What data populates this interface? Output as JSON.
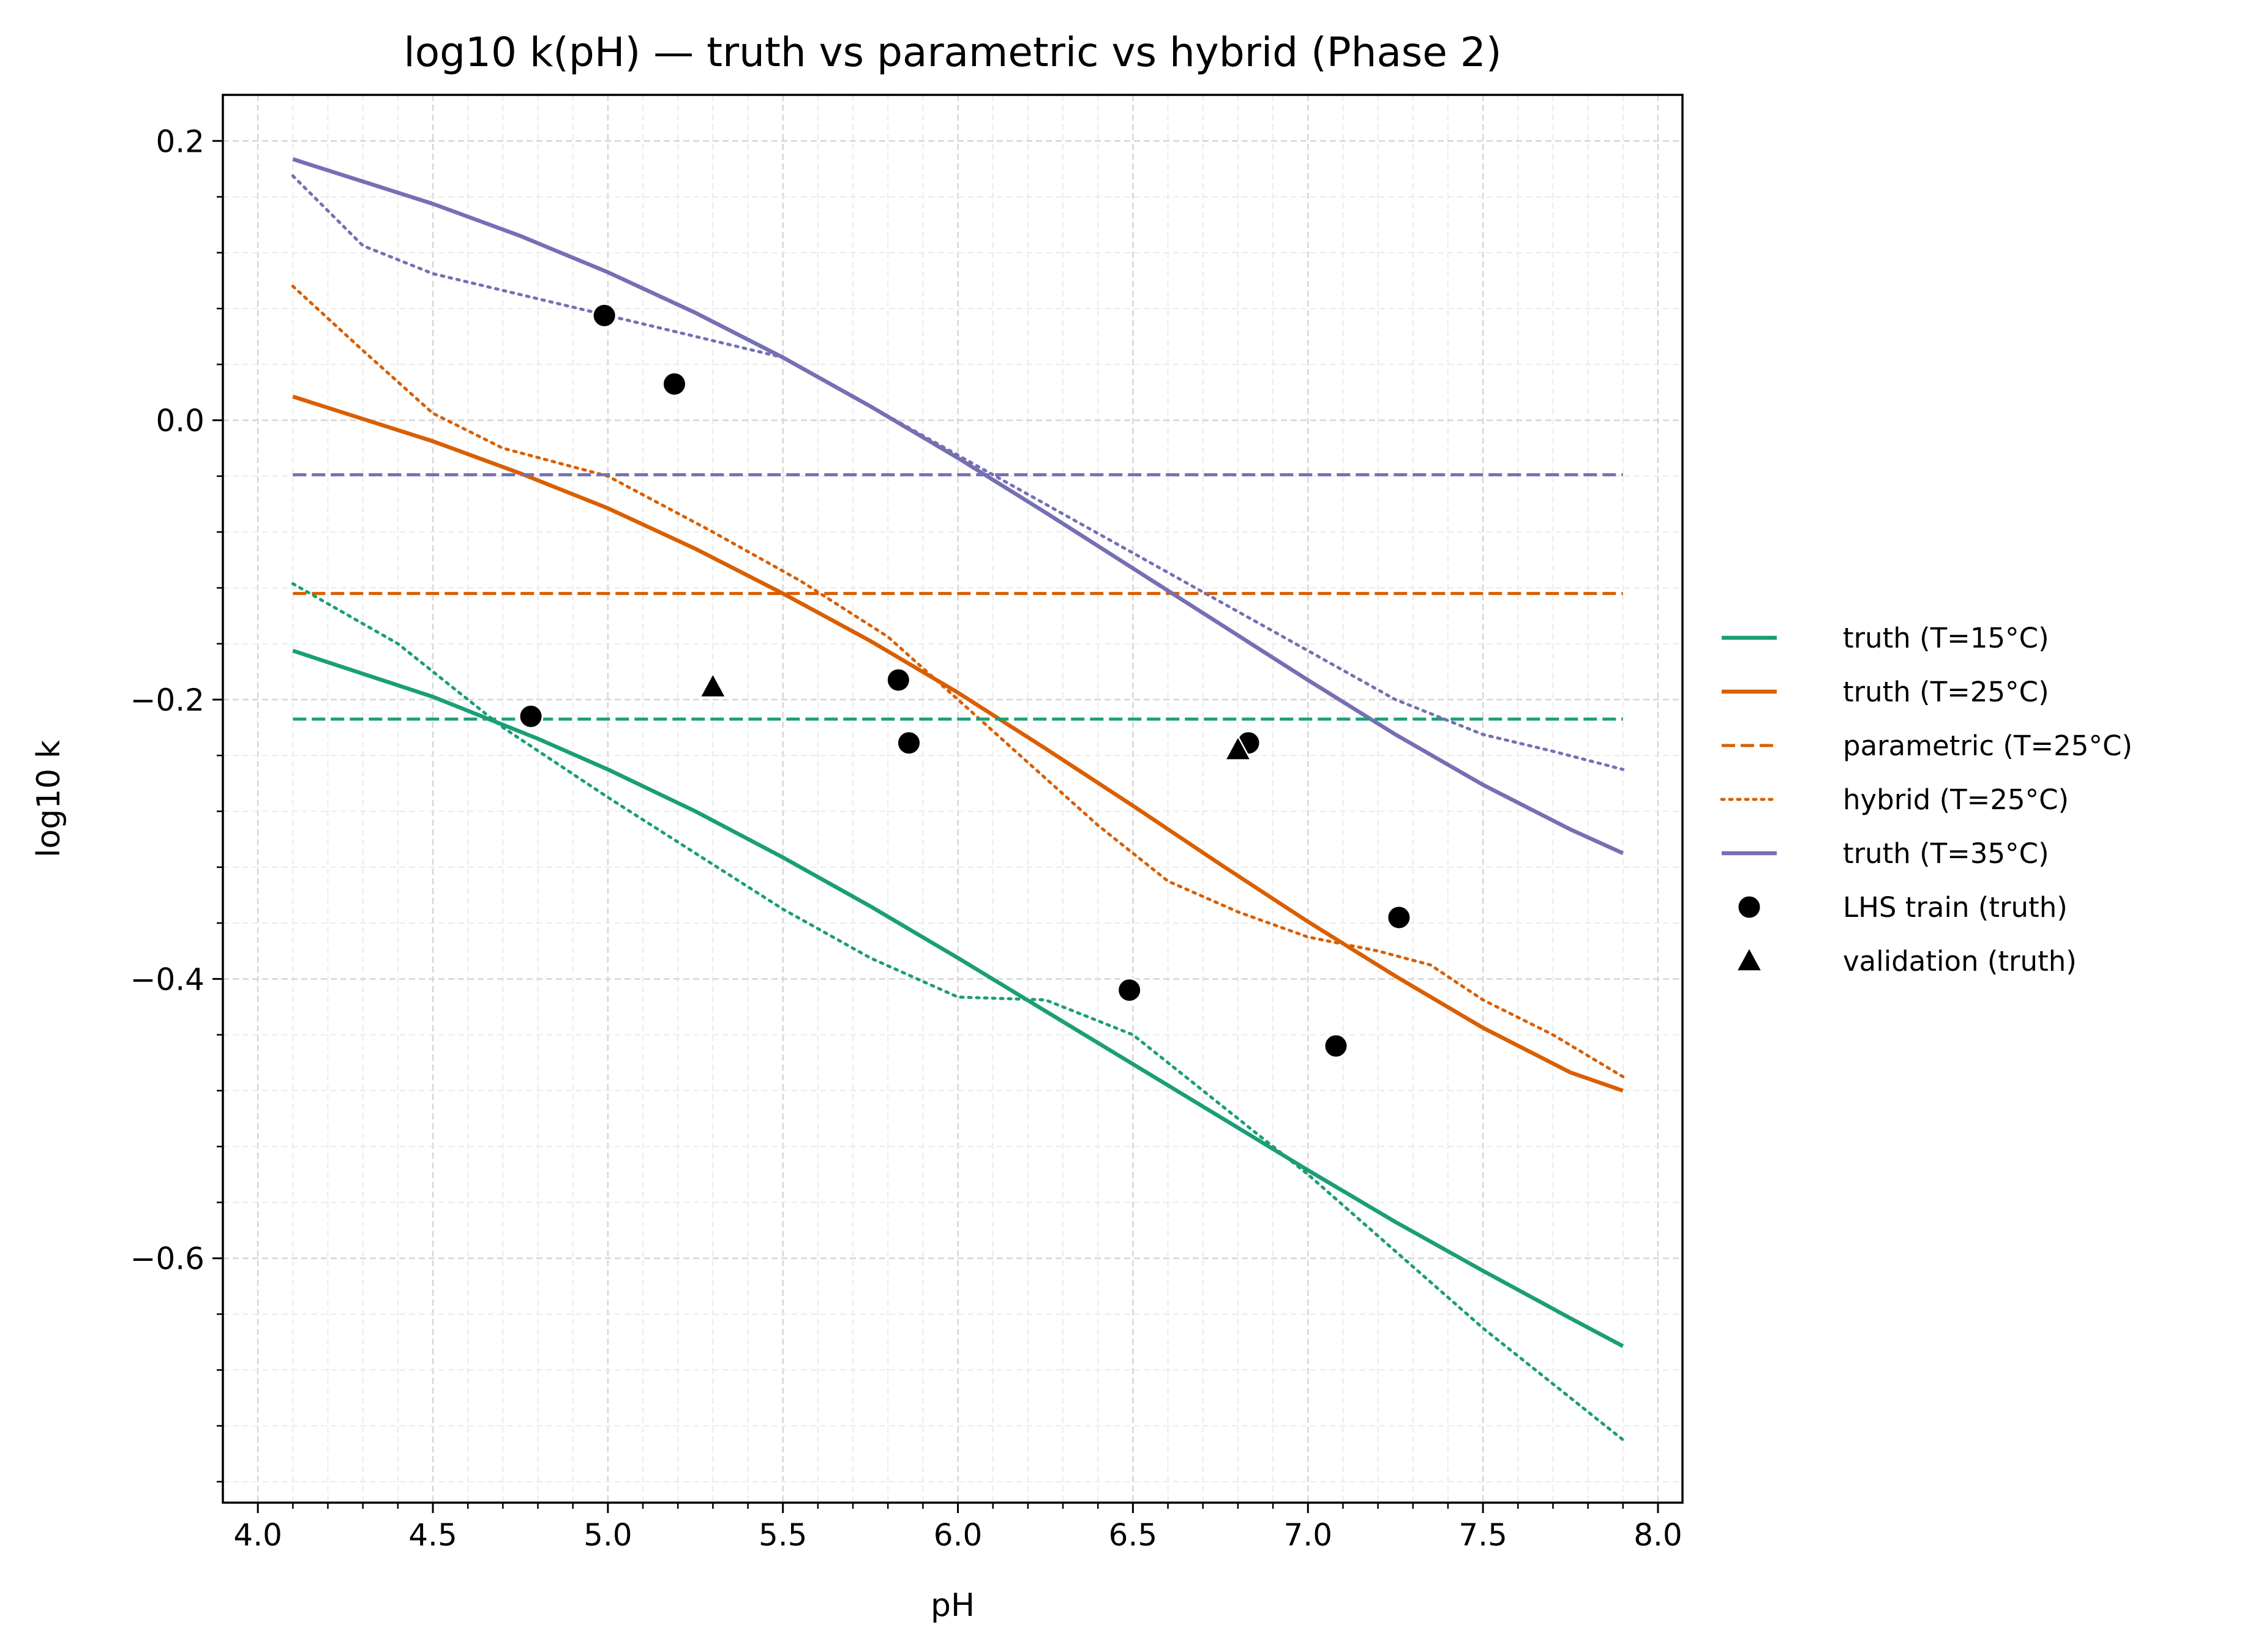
{
  "chart_data": {
    "type": "line",
    "title": "log10 k(pH) — truth vs parametric vs hybrid (Phase 2)",
    "xlabel": "pH",
    "ylabel": "log10 k",
    "xlim": [
      3.9,
      8.07
    ],
    "ylim": [
      -0.775,
      0.233
    ],
    "x_ticks": [
      4.0,
      4.5,
      5.0,
      5.5,
      6.0,
      6.5,
      7.0,
      7.5,
      8.0
    ],
    "x_tick_labels": [
      "4.0",
      "4.5",
      "5.0",
      "5.5",
      "6.0",
      "6.5",
      "7.0",
      "7.5",
      "8.0"
    ],
    "y_ticks": [
      0.2,
      0.0,
      -0.2,
      -0.4,
      -0.6
    ],
    "y_tick_labels": [
      "0.2",
      "0.0",
      "−0.2",
      "−0.4",
      "−0.6"
    ],
    "grid": "on (major and minor, dashed)",
    "legend_position": "outside-right",
    "colors": {
      "t15": "#1b9e77",
      "t25": "#d95f02",
      "t35": "#7570b3",
      "markers": "#000000"
    },
    "series": [
      {
        "name": "truth (T=15°C)",
        "style": "solid",
        "color": "#1b9e77",
        "x": [
          4.1,
          4.5,
          4.8,
          5.0,
          5.25,
          5.5,
          5.75,
          6.0,
          6.25,
          6.5,
          6.75,
          7.0,
          7.25,
          7.5,
          7.75,
          7.9
        ],
        "y": [
          -0.165,
          -0.198,
          -0.228,
          -0.25,
          -0.28,
          -0.313,
          -0.348,
          -0.385,
          -0.423,
          -0.461,
          -0.499,
          -0.537,
          -0.574,
          -0.609,
          -0.643,
          -0.663
        ]
      },
      {
        "name": "truth (T=25°C)",
        "style": "solid",
        "color": "#d95f02",
        "x": [
          4.1,
          4.5,
          4.75,
          5.0,
          5.25,
          5.5,
          5.75,
          6.0,
          6.25,
          6.5,
          6.75,
          7.0,
          7.25,
          7.5,
          7.75,
          7.9
        ],
        "y": [
          0.017,
          -0.015,
          -0.038,
          -0.063,
          -0.092,
          -0.124,
          -0.158,
          -0.195,
          -0.235,
          -0.276,
          -0.318,
          -0.359,
          -0.398,
          -0.435,
          -0.467,
          -0.48
        ]
      },
      {
        "name": "parametric (T=25°C)",
        "style": "dashed",
        "color": "#d95f02",
        "x": [
          4.1,
          7.9
        ],
        "y": [
          -0.124,
          -0.124
        ]
      },
      {
        "name": "hybrid (T=25°C)",
        "style": "dotted",
        "color": "#d95f02",
        "x": [
          4.1,
          4.3,
          4.5,
          4.7,
          5.0,
          5.3,
          5.55,
          5.8,
          6.0,
          6.2,
          6.4,
          6.6,
          6.8,
          7.0,
          7.2,
          7.35,
          7.5,
          7.7,
          7.9
        ],
        "y": [
          0.096,
          0.05,
          0.005,
          -0.02,
          -0.04,
          -0.08,
          -0.115,
          -0.155,
          -0.2,
          -0.245,
          -0.29,
          -0.33,
          -0.352,
          -0.37,
          -0.38,
          -0.39,
          -0.415,
          -0.44,
          -0.47
        ]
      },
      {
        "name": "truth (T=35°C)",
        "style": "solid",
        "color": "#7570b3",
        "x": [
          4.1,
          4.5,
          4.75,
          5.0,
          5.25,
          5.5,
          5.75,
          6.0,
          6.25,
          6.5,
          6.75,
          7.0,
          7.25,
          7.5,
          7.75,
          7.9
        ],
        "y": [
          0.187,
          0.155,
          0.132,
          0.106,
          0.077,
          0.045,
          0.01,
          -0.027,
          -0.066,
          -0.106,
          -0.146,
          -0.186,
          -0.225,
          -0.261,
          -0.293,
          -0.31
        ]
      },
      {
        "name": "",
        "style": "dashed",
        "color": "#7570b3",
        "x": [
          4.1,
          7.9
        ],
        "y": [
          -0.039,
          -0.039
        ]
      },
      {
        "name": "",
        "style": "dashed",
        "color": "#1b9e77",
        "x": [
          4.1,
          7.9
        ],
        "y": [
          -0.214,
          -0.214
        ]
      },
      {
        "name": "",
        "style": "dotted",
        "color": "#7570b3",
        "x": [
          4.1,
          4.3,
          4.5,
          4.75,
          5.0,
          5.25,
          5.5,
          5.75,
          6.0,
          6.25,
          6.5,
          6.75,
          7.0,
          7.25,
          7.5,
          7.7,
          7.9
        ],
        "y": [
          0.175,
          0.125,
          0.105,
          0.09,
          0.075,
          0.06,
          0.045,
          0.01,
          -0.025,
          -0.06,
          -0.095,
          -0.13,
          -0.165,
          -0.2,
          -0.225,
          -0.237,
          -0.25
        ]
      },
      {
        "name": "",
        "style": "dotted",
        "color": "#1b9e77",
        "x": [
          4.1,
          4.4,
          4.7,
          5.0,
          5.25,
          5.5,
          5.75,
          6.0,
          6.25,
          6.5,
          6.75,
          7.0,
          7.25,
          7.5,
          7.75,
          7.9
        ],
        "y": [
          -0.117,
          -0.16,
          -0.22,
          -0.27,
          -0.31,
          -0.35,
          -0.385,
          -0.413,
          -0.415,
          -0.44,
          -0.49,
          -0.54,
          -0.595,
          -0.65,
          -0.7,
          -0.73
        ]
      }
    ],
    "scatter": [
      {
        "name": "LHS train (truth)",
        "marker": "circle",
        "x": [
          4.78,
          4.99,
          5.19,
          5.83,
          5.86,
          6.49,
          6.83,
          7.08,
          7.26
        ],
        "y": [
          -0.212,
          0.075,
          0.026,
          -0.186,
          -0.231,
          -0.408,
          -0.231,
          -0.448,
          -0.356
        ]
      },
      {
        "name": "validation (truth)",
        "marker": "triangle",
        "x": [
          5.3,
          6.8
        ],
        "y": [
          -0.191,
          -0.236
        ]
      }
    ]
  }
}
